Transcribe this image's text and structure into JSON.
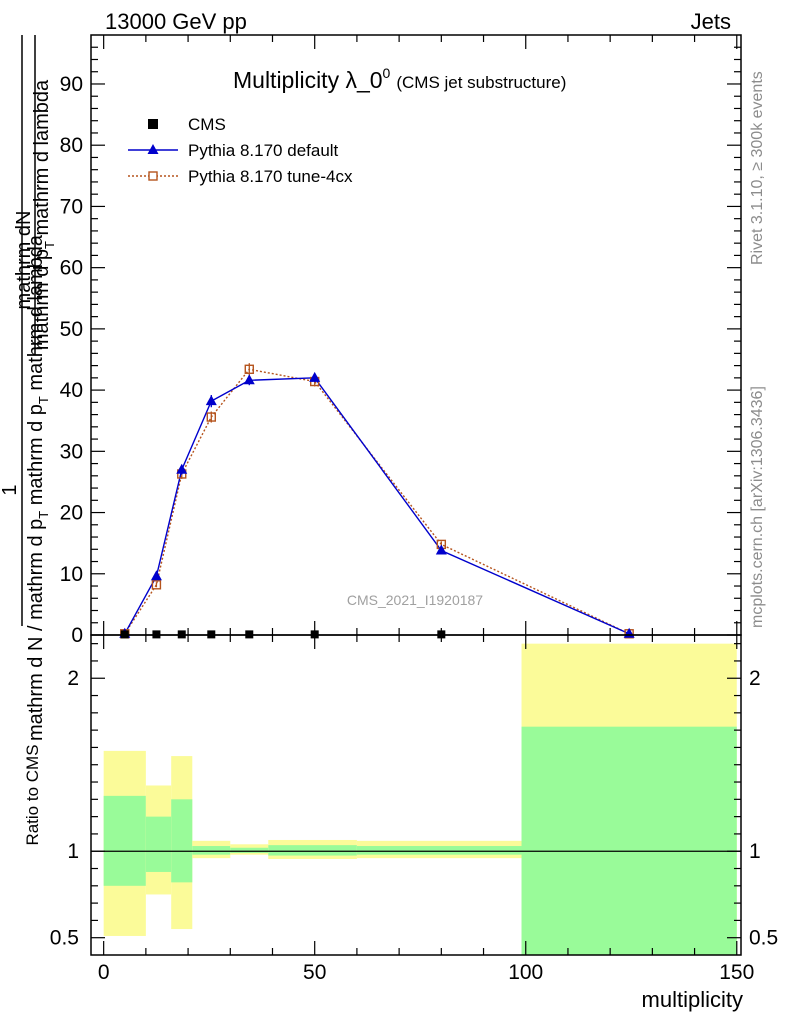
{
  "header": {
    "left": "13000 GeV pp",
    "right": "Jets"
  },
  "title": {
    "main": "Multiplicity λ_0",
    "sup": "0",
    "sub": "(CMS jet substructure)"
  },
  "watermark": "CMS_2021_I1920187",
  "side_labels": {
    "rivet": "Rivet 3.1.10, ≥ 300k events",
    "mcplots": "mcplots.cern.ch [arXiv:1306.3436]"
  },
  "y_label_top": {
    "numerator": "mathrm dN",
    "denominator_a": "mathrm d p",
    "denominator_sub": "T",
    "denominator_b": " mathrm d lambda",
    "one": "1",
    "lower_a": "mathrm d N / mathrm d p",
    "lower_sub": "T",
    "lower_b": " mathrm d p",
    "lower_sub2": "T",
    "lower_c": " mathrm d lambda"
  },
  "colors": {
    "cms": "#000000",
    "pythia_default": "#0000cc",
    "pythia_tune": "#b5541d",
    "band_outer": "#fbfb99",
    "band_inner": "#99fb99"
  },
  "chart_data": [
    {
      "type": "line",
      "panel": "main",
      "xlim": [
        -3,
        151
      ],
      "ylim": [
        0,
        98
      ],
      "y_ticks": [
        0,
        10,
        20,
        30,
        40,
        50,
        60,
        70,
        80,
        90
      ],
      "legend_position": "top-left",
      "legend": [
        {
          "name": "CMS",
          "style": "square-marker"
        },
        {
          "name": "Pythia 8.170 default",
          "style": "solid-triangle"
        },
        {
          "name": "Pythia 8.170 tune-4cx",
          "style": "dotted-open-square"
        }
      ],
      "series": [
        {
          "name": "CMS",
          "x": [
            5,
            12.5,
            18.5,
            25.5,
            34.5,
            50,
            80
          ],
          "y": [
            0.1,
            0.1,
            0.1,
            0.1,
            0.1,
            0.1,
            0.1
          ]
        },
        {
          "name": "Pythia 8.170 default",
          "x": [
            5,
            12.5,
            18.5,
            25.5,
            34.5,
            50,
            80,
            124.5
          ],
          "y": [
            0.2,
            9.6,
            27.0,
            38.2,
            41.6,
            42.0,
            13.8,
            0.2
          ],
          "err": [
            0.1,
            0.4,
            0.8,
            1.0,
            0.8,
            0.7,
            0.5,
            0.1
          ]
        },
        {
          "name": "Pythia 8.170 tune-4cx",
          "x": [
            5,
            12.5,
            18.5,
            25.5,
            34.5,
            50,
            80,
            124.5
          ],
          "y": [
            0.2,
            8.2,
            26.3,
            35.6,
            43.4,
            41.4,
            14.8,
            0.2
          ],
          "err": [
            0.1,
            0.4,
            0.8,
            0.9,
            1.0,
            0.8,
            0.5,
            0.1
          ]
        }
      ]
    },
    {
      "type": "area",
      "panel": "ratio",
      "xlabel": "multiplicity",
      "ylabel": "Ratio to CMS",
      "xlim": [
        -3,
        151
      ],
      "ylim": [
        0.4,
        2.25
      ],
      "x_ticks": [
        0,
        50,
        100,
        150
      ],
      "y_ticks": [
        0.5,
        1,
        2
      ],
      "reference": 1,
      "bands": [
        {
          "x0": 0,
          "x1": 10,
          "outer": [
            0.51,
            1.58
          ],
          "inner": [
            0.8,
            1.32
          ]
        },
        {
          "x0": 10,
          "x1": 16,
          "outer": [
            0.75,
            1.38
          ],
          "inner": [
            0.88,
            1.2
          ]
        },
        {
          "x0": 16,
          "x1": 21,
          "outer": [
            0.55,
            1.55
          ],
          "inner": [
            0.82,
            1.3
          ]
        },
        {
          "x0": 21,
          "x1": 30,
          "outer": [
            0.96,
            1.06
          ],
          "inner": [
            0.98,
            1.03
          ]
        },
        {
          "x0": 30,
          "x1": 39,
          "outer": [
            0.98,
            1.04
          ],
          "inner": [
            0.99,
            1.02
          ]
        },
        {
          "x0": 39,
          "x1": 60,
          "outer": [
            0.955,
            1.065
          ],
          "inner": [
            0.975,
            1.035
          ]
        },
        {
          "x0": 60,
          "x1": 99,
          "outer": [
            0.96,
            1.06
          ],
          "inner": [
            0.98,
            1.03
          ]
        },
        {
          "x0": 99,
          "x1": 150,
          "outer": [
            0.4,
            2.2
          ],
          "inner": [
            0.4,
            1.72
          ]
        }
      ]
    }
  ]
}
